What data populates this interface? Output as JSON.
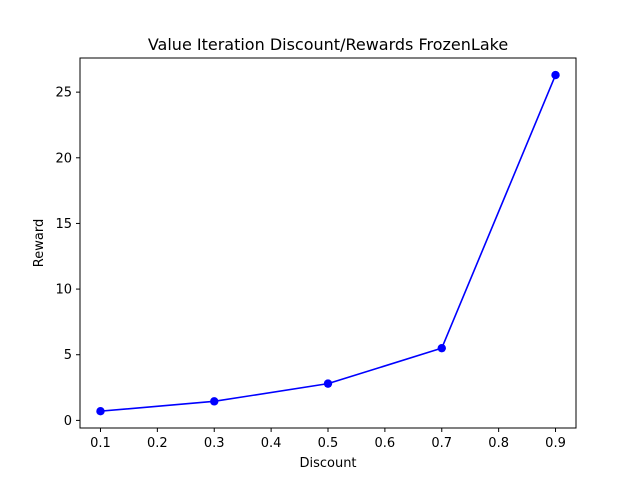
{
  "chart_data": {
    "type": "line",
    "title": "Value Iteration Discount/Rewards FrozenLake",
    "xlabel": "Discount",
    "ylabel": "Reward",
    "x": [
      0.1,
      0.3,
      0.5,
      0.7,
      0.9
    ],
    "series": [
      {
        "values": [
          0.7,
          1.45,
          2.8,
          5.5,
          26.3
        ],
        "color": "#0000ff",
        "marker": "circle"
      }
    ],
    "xlim": [
      0.064,
      0.936
    ],
    "ylim": [
      -0.58,
      27.6
    ],
    "xticks": [
      0.1,
      0.2,
      0.3,
      0.4,
      0.5,
      0.6,
      0.7,
      0.8,
      0.9
    ],
    "xtick_labels": [
      "0.1",
      "0.2",
      "0.3",
      "0.4",
      "0.5",
      "0.6",
      "0.7",
      "0.8",
      "0.9"
    ],
    "yticks": [
      0,
      5,
      10,
      15,
      20,
      25
    ],
    "ytick_labels": [
      "0",
      "5",
      "10",
      "15",
      "20",
      "25"
    ],
    "grid": false,
    "legend": "none"
  }
}
